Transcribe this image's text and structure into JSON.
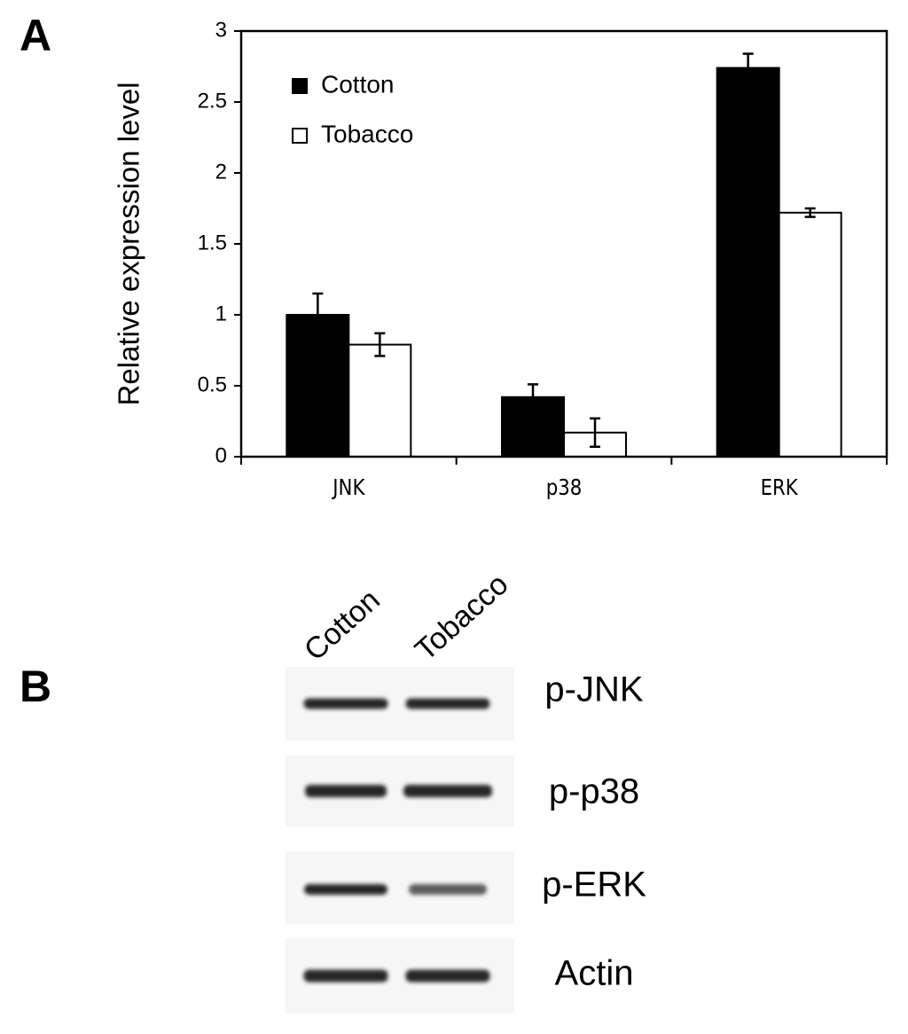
{
  "chart_data": {
    "type": "bar",
    "panel_label": "A",
    "y_label": "Relative expression level",
    "categories": [
      "JNK",
      "p38",
      "ERK"
    ],
    "series": [
      {
        "name": "Cotton",
        "color": "#000000",
        "values": [
          1.0,
          0.42,
          2.74
        ],
        "errors": [
          0.15,
          0.09,
          0.1
        ]
      },
      {
        "name": "Tobacco",
        "color": "#ffffff",
        "values": [
          0.79,
          0.17,
          1.72
        ],
        "errors": [
          0.08,
          0.1,
          0.03
        ]
      }
    ],
    "ylim": [
      0,
      3
    ],
    "yticks": [
      0,
      0.5,
      1,
      1.5,
      2,
      2.5,
      3
    ],
    "grid": false,
    "legend": "upper left"
  },
  "blot": {
    "panel_label": "B",
    "lanes": [
      "Cotton",
      "Tobacco"
    ],
    "rows": [
      "p-JNK",
      "p-p38",
      "p-ERK",
      "Actin"
    ]
  }
}
